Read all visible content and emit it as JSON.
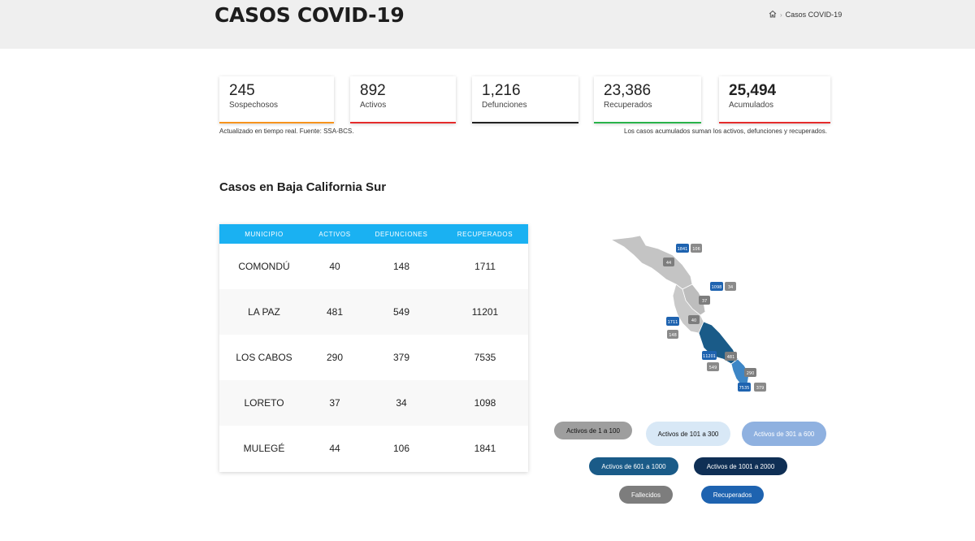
{
  "header": {
    "title": "CASOS COVID-19",
    "breadcrumb_current": "Casos COVID-19"
  },
  "stats": [
    {
      "value": "245",
      "label": "Sospechosos",
      "color": "#f7941d"
    },
    {
      "value": "892",
      "label": "Activos",
      "color": "#e52c2c"
    },
    {
      "value": "1,216",
      "label": "Defunciones",
      "color": "#222222"
    },
    {
      "value": "23,386",
      "label": "Recuperados",
      "color": "#29b34a"
    },
    {
      "value": "25,494",
      "label": "Acumulados",
      "color": "#e52c2c"
    }
  ],
  "notes": {
    "left": "Actualizado en tiempo real. Fuente: SSA-BCS.",
    "right": "Los casos acumulados suman los activos, defunciones y recuperados."
  },
  "section_title": "Casos en Baja California Sur",
  "table": {
    "headers": [
      "MUNICIPIO",
      "ACTIVOS",
      "DEFUNCIONES",
      "RECUPERADOS"
    ],
    "rows": [
      [
        "COMONDÚ",
        "40",
        "148",
        "1711"
      ],
      [
        "LA PAZ",
        "481",
        "549",
        "11201"
      ],
      [
        "LOS CABOS",
        "290",
        "379",
        "7535"
      ],
      [
        "LORETO",
        "37",
        "34",
        "1098"
      ],
      [
        "MULEGÉ",
        "44",
        "106",
        "1841"
      ]
    ]
  },
  "map": {
    "labels": {
      "mulege_rec": "1841",
      "mulege_def": "106",
      "mulege_act": "44",
      "loreto_rec": "1098",
      "loreto_def": "34",
      "loreto_act": "37",
      "comondu_rec": "1711",
      "comondu_def": "148",
      "comondu_act": "40",
      "lapaz_rec": "11201",
      "lapaz_act": "481",
      "lapaz_def": "549",
      "loscabos_act": "290",
      "loscabos_rec": "7535",
      "loscabos_def": "379"
    }
  },
  "legend": {
    "l1": "Activos de 1 a 100",
    "l2": "Activos de 101 a 300",
    "l3": "Activos de 301 a 600",
    "l4": "Activos de 601 a 1000",
    "l5": "Activos de 1001 a 2000",
    "l6": "Fallecidos",
    "l7": "Recuperados"
  }
}
